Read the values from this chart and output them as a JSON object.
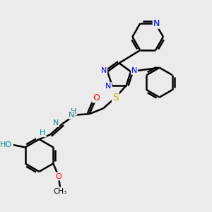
{
  "background_color": "#ebebeb",
  "atoms": {
    "N_blue": "#0000EE",
    "O_red": "#FF0000",
    "S_yellow": "#BBBB00",
    "C_black": "#000000",
    "H_teal": "#008B8B"
  },
  "bond_color": "#000000",
  "bond_width": 1.8,
  "font_size_atom": 8,
  "figsize": [
    3.0,
    3.0
  ],
  "dpi": 100,
  "xlim": [
    0,
    10
  ],
  "ylim": [
    0,
    10
  ]
}
